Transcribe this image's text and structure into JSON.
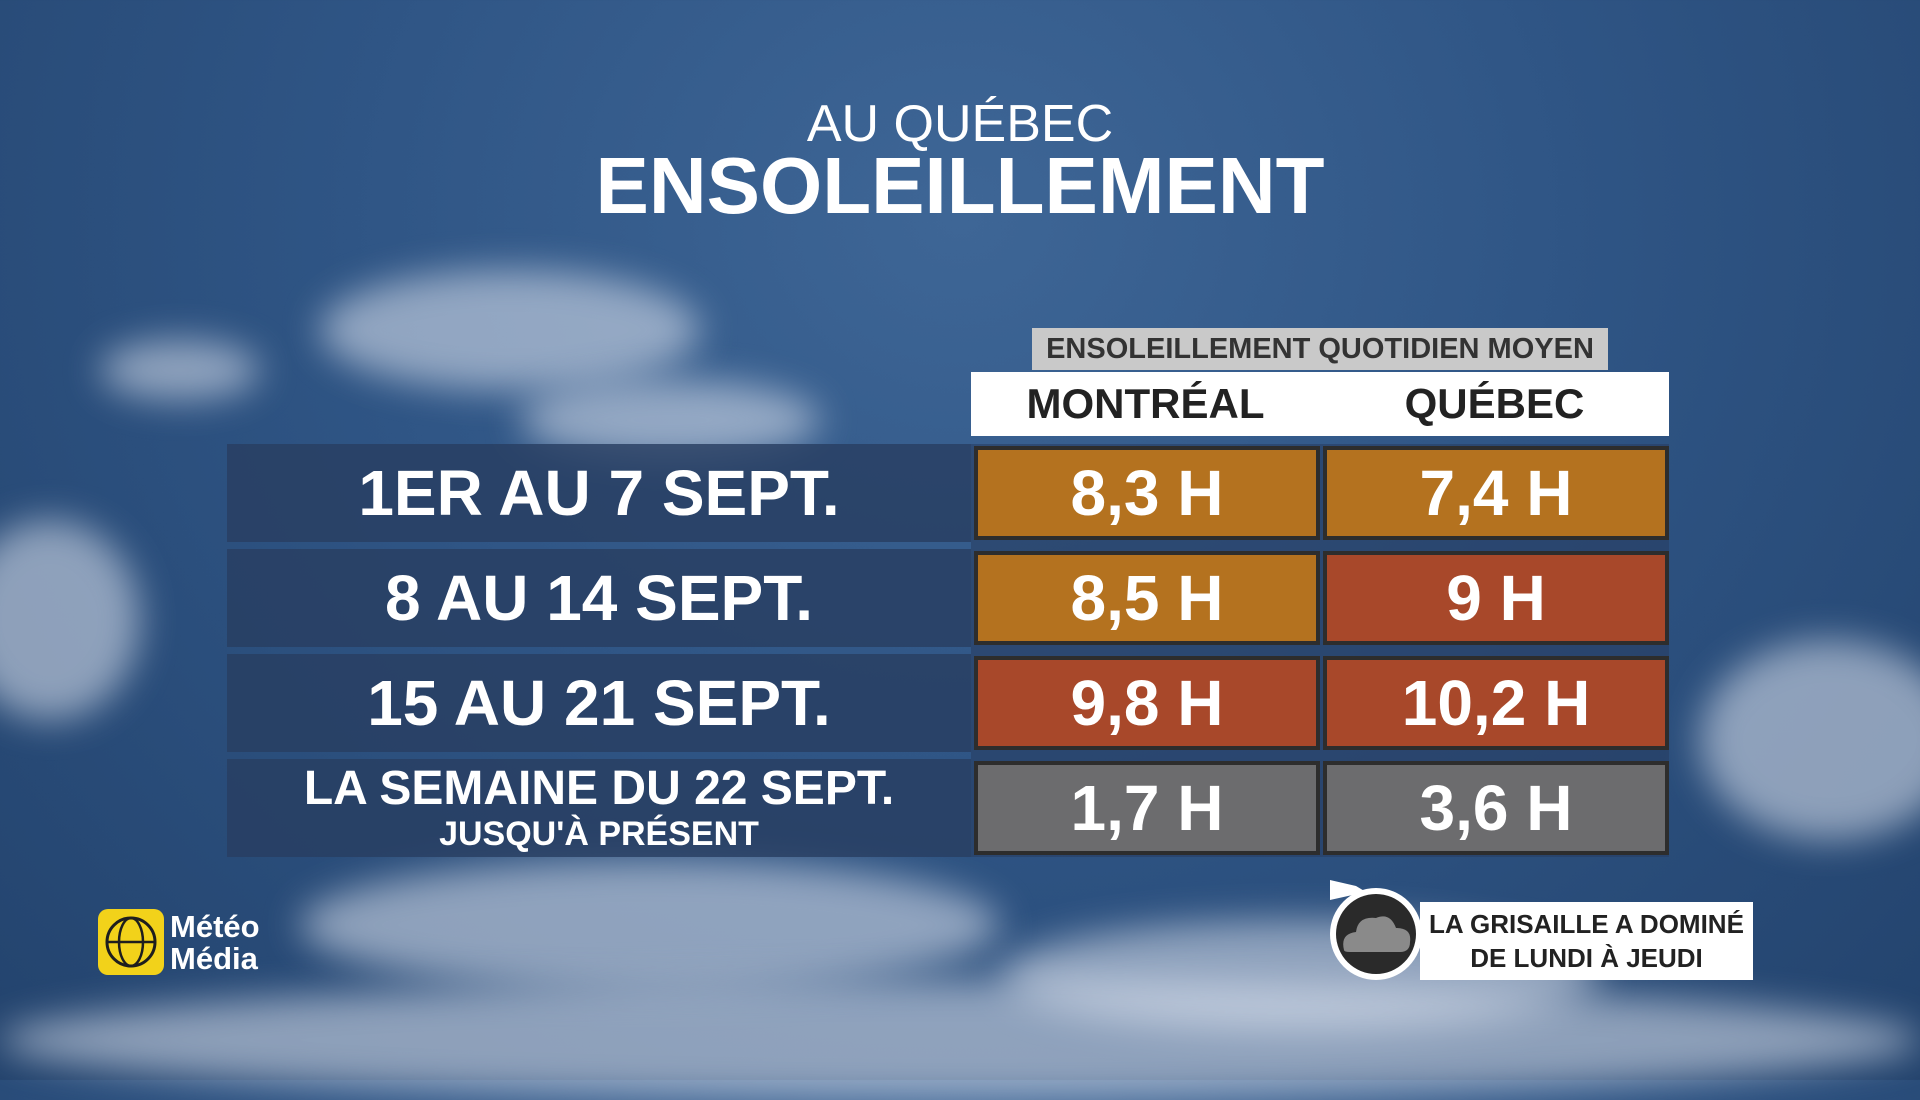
{
  "header": {
    "subtitle": "AU QUÉBEC",
    "title": "ENSOLEILLEMENT"
  },
  "table": {
    "caption": "ENSOLEILLEMENT QUOTIDIEN MOYEN",
    "columns": [
      "MONTRÉAL",
      "QUÉBEC"
    ],
    "rows": [
      {
        "label": "1ER AU 7 SEPT.",
        "cells": [
          "8,3 H",
          "7,4 H"
        ]
      },
      {
        "label": "8 AU 14 SEPT.",
        "cells": [
          "8,5 H",
          "9 H"
        ]
      },
      {
        "label": "15 AU 21 SEPT.",
        "cells": [
          "9,8 H",
          "10,2 H"
        ]
      },
      {
        "label": "LA SEMAINE DU 22 SEPT.",
        "sublabel": "JUSQU'À PRÉSENT",
        "cells": [
          "1,7 H",
          "3,6 H"
        ]
      }
    ]
  },
  "note": {
    "lines": [
      "LA GRISAILLE A DOMINÉ",
      "DE LUNDI À JEUDI"
    ]
  },
  "logo": {
    "lines": [
      "Météo",
      "Média"
    ]
  }
}
